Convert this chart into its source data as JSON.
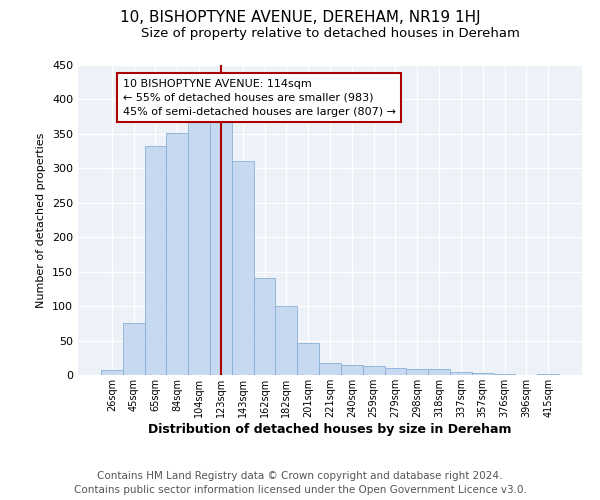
{
  "title": "10, BISHOPTYNE AVENUE, DEREHAM, NR19 1HJ",
  "subtitle": "Size of property relative to detached houses in Dereham",
  "xlabel": "Distribution of detached houses by size in Dereham",
  "ylabel": "Number of detached properties",
  "bar_labels": [
    "26sqm",
    "45sqm",
    "65sqm",
    "84sqm",
    "104sqm",
    "123sqm",
    "143sqm",
    "162sqm",
    "182sqm",
    "201sqm",
    "221sqm",
    "240sqm",
    "259sqm",
    "279sqm",
    "298sqm",
    "318sqm",
    "337sqm",
    "357sqm",
    "376sqm",
    "396sqm",
    "415sqm"
  ],
  "bar_values": [
    7,
    75,
    333,
    352,
    369,
    369,
    311,
    141,
    100,
    46,
    17,
    15,
    13,
    10,
    9,
    8,
    4,
    3,
    2,
    0,
    2
  ],
  "bar_color": "#c6d9f0",
  "bar_edgecolor": "#8ab0d4",
  "vline_color": "#aa0000",
  "annotation_title": "10 BISHOPTYNE AVENUE: 114sqm",
  "annotation_line1": "← 55% of detached houses are smaller (983)",
  "annotation_line2": "45% of semi-detached houses are larger (807) →",
  "annotation_box_facecolor": "#ffffff",
  "annotation_box_edgecolor": "#aa0000",
  "ylim": [
    0,
    450
  ],
  "yticks": [
    0,
    50,
    100,
    150,
    200,
    250,
    300,
    350,
    400,
    450
  ],
  "footer1": "Contains HM Land Registry data © Crown copyright and database right 2024.",
  "footer2": "Contains public sector information licensed under the Open Government Licence v3.0.",
  "bg_color": "#ffffff",
  "plot_bg_color": "#edf2f9",
  "title_fontsize": 11,
  "subtitle_fontsize": 9.5,
  "footer_fontsize": 7.5,
  "xlabel_fontsize": 9,
  "ylabel_fontsize": 8
}
